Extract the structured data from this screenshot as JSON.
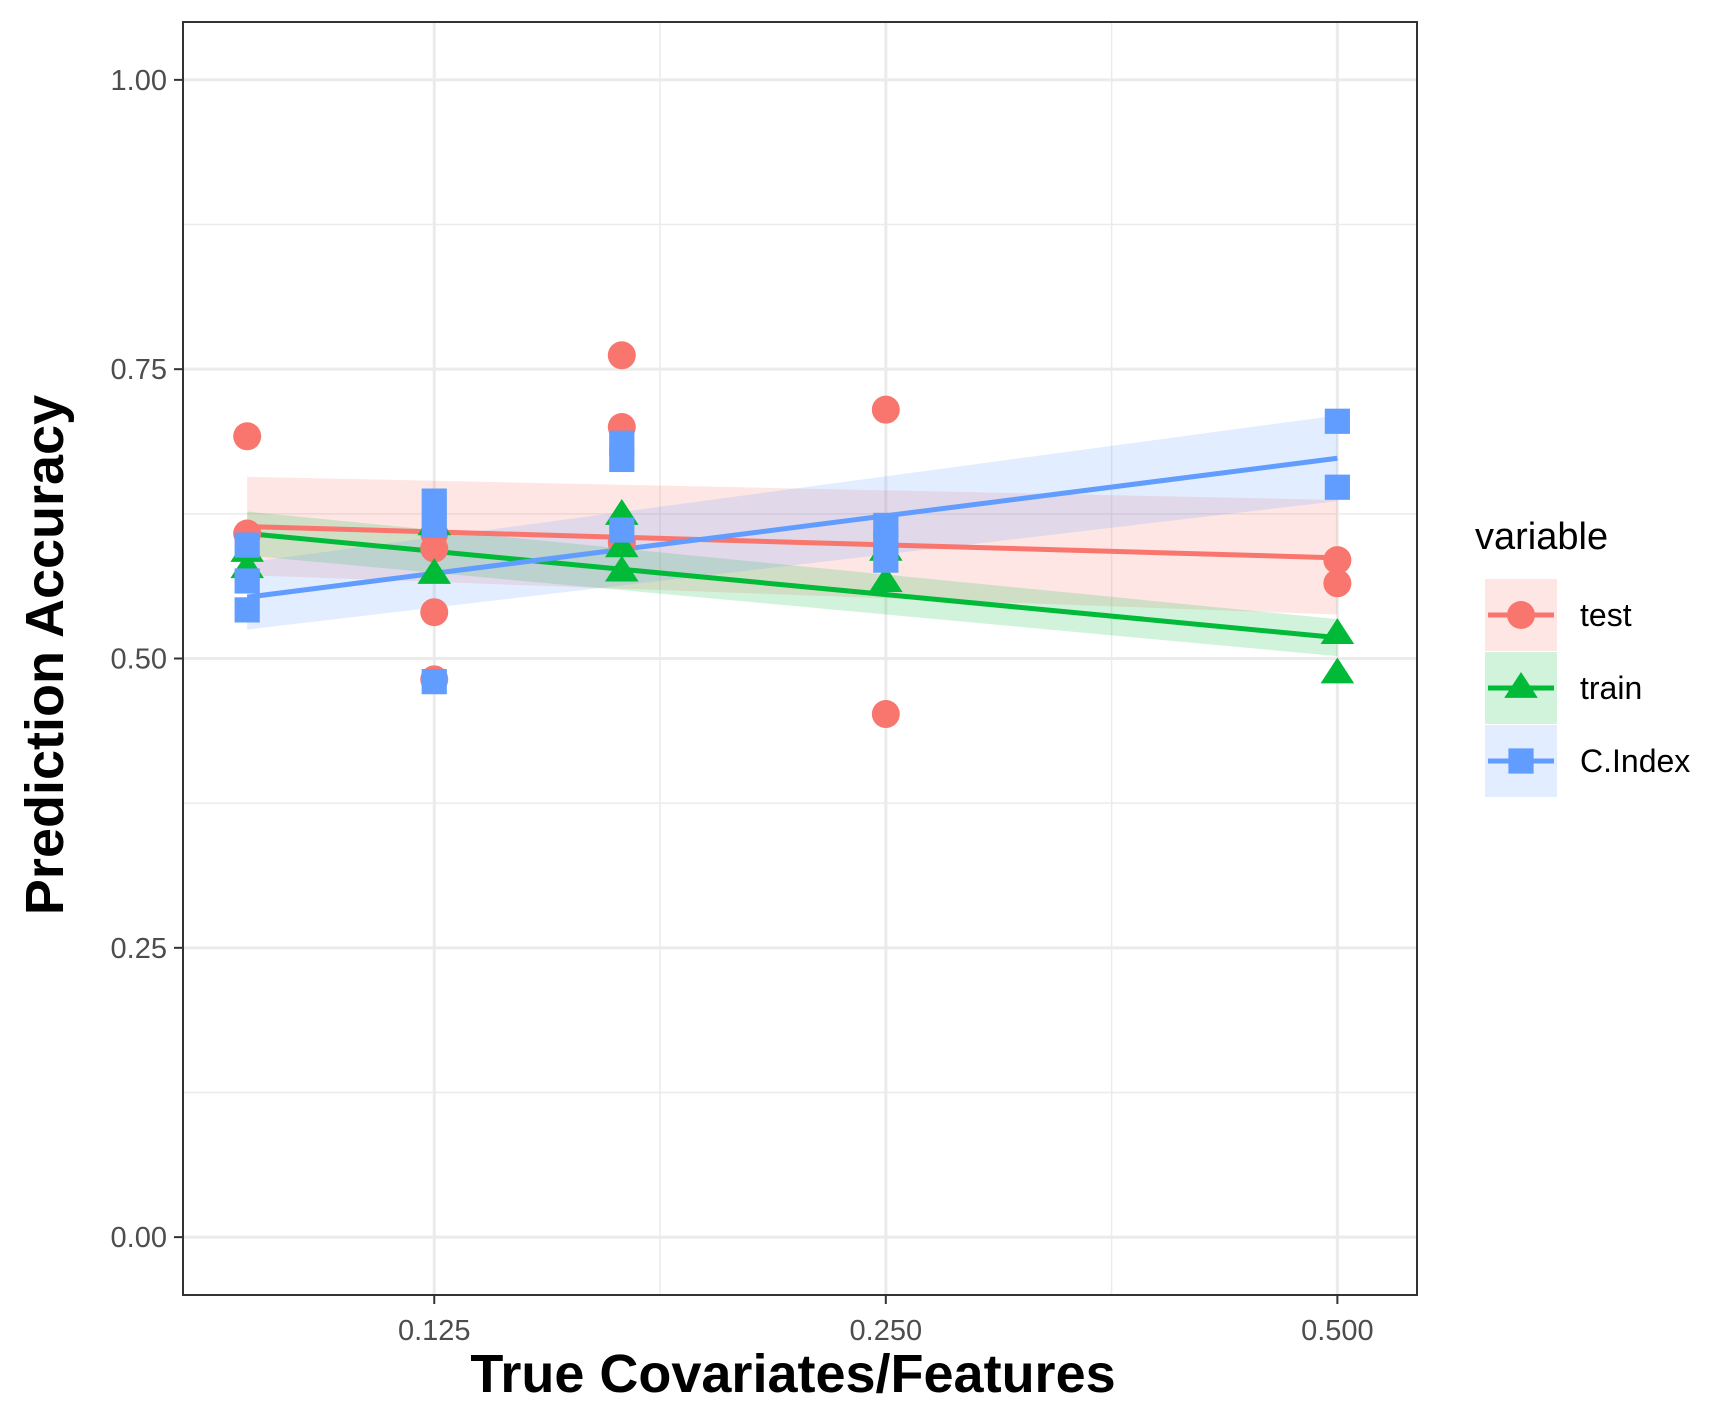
{
  "chart_data": {
    "type": "scatter",
    "title": "",
    "xlabel": "True Covariates/Features",
    "ylabel": "Prediction Accuracy",
    "x_scale": "log2",
    "xlim": [
      0.085,
      0.565
    ],
    "ylim": [
      -0.05,
      1.05
    ],
    "x_ticks": [
      0.125,
      0.25,
      0.5
    ],
    "x_tick_labels": [
      "0.125",
      "0.250",
      "0.500"
    ],
    "y_ticks": [
      0,
      0.25,
      0.5,
      0.75,
      1
    ],
    "y_tick_labels": [
      "0.00",
      "0.25",
      "0.50",
      "0.75",
      "1.00"
    ],
    "grid": true,
    "legend": {
      "title": "variable",
      "position": "right"
    },
    "series": [
      {
        "name": "test",
        "color": "#F8766D",
        "shape": "circle",
        "points": [
          {
            "x": 0.0938,
            "y": 0.692
          },
          {
            "x": 0.0938,
            "y": 0.608
          },
          {
            "x": 0.125,
            "y": 0.54
          },
          {
            "x": 0.125,
            "y": 0.595
          },
          {
            "x": 0.125,
            "y": 0.608
          },
          {
            "x": 0.125,
            "y": 0.482
          },
          {
            "x": 0.1667,
            "y": 0.762
          },
          {
            "x": 0.1667,
            "y": 0.7
          },
          {
            "x": 0.1667,
            "y": 0.6
          },
          {
            "x": 0.25,
            "y": 0.715
          },
          {
            "x": 0.25,
            "y": 0.452
          },
          {
            "x": 0.5,
            "y": 0.585
          },
          {
            "x": 0.5,
            "y": 0.565
          }
        ],
        "fit": {
          "x": [
            0.0938,
            0.5
          ],
          "y": [
            0.614,
            0.587
          ]
        },
        "band": {
          "lower": [
            0.572,
            0.538
          ],
          "upper": [
            0.657,
            0.637
          ]
        }
      },
      {
        "name": "train",
        "color": "#00BA38",
        "shape": "triangle",
        "points": [
          {
            "x": 0.0938,
            "y": 0.592
          },
          {
            "x": 0.0938,
            "y": 0.578
          },
          {
            "x": 0.125,
            "y": 0.615
          },
          {
            "x": 0.125,
            "y": 0.573
          },
          {
            "x": 0.1667,
            "y": 0.624
          },
          {
            "x": 0.1667,
            "y": 0.596
          },
          {
            "x": 0.1667,
            "y": 0.575
          },
          {
            "x": 0.25,
            "y": 0.593
          },
          {
            "x": 0.25,
            "y": 0.566
          },
          {
            "x": 0.5,
            "y": 0.521
          },
          {
            "x": 0.5,
            "y": 0.487
          }
        ],
        "fit": {
          "x": [
            0.0938,
            0.5
          ],
          "y": [
            0.608,
            0.518
          ]
        },
        "band": {
          "lower": [
            0.589,
            0.502
          ],
          "upper": [
            0.627,
            0.534
          ]
        }
      },
      {
        "name": "C.Index",
        "color": "#619CFF",
        "shape": "square",
        "points": [
          {
            "x": 0.0938,
            "y": 0.598
          },
          {
            "x": 0.0938,
            "y": 0.567
          },
          {
            "x": 0.0938,
            "y": 0.542
          },
          {
            "x": 0.125,
            "y": 0.636
          },
          {
            "x": 0.125,
            "y": 0.615
          },
          {
            "x": 0.125,
            "y": 0.48
          },
          {
            "x": 0.1667,
            "y": 0.686
          },
          {
            "x": 0.1667,
            "y": 0.672
          },
          {
            "x": 0.1667,
            "y": 0.611
          },
          {
            "x": 0.25,
            "y": 0.615
          },
          {
            "x": 0.25,
            "y": 0.6
          },
          {
            "x": 0.25,
            "y": 0.585
          },
          {
            "x": 0.5,
            "y": 0.705
          },
          {
            "x": 0.5,
            "y": 0.648
          }
        ],
        "fit": {
          "x": [
            0.0938,
            0.5
          ],
          "y": [
            0.553,
            0.673
          ]
        },
        "band": {
          "lower": [
            0.525,
            0.636
          ],
          "upper": [
            0.583,
            0.71
          ]
        }
      }
    ]
  }
}
